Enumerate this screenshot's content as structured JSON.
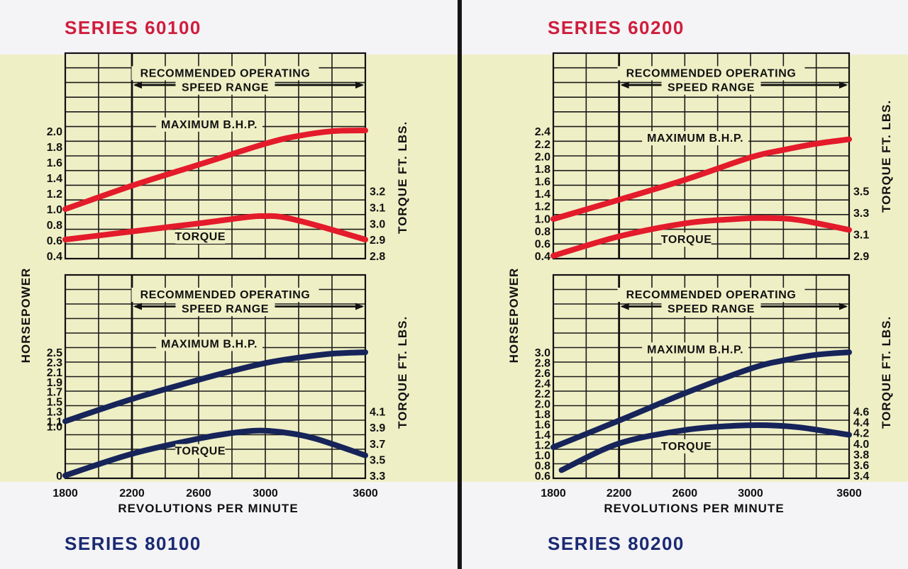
{
  "titles": {
    "top_left": "SERIES 60100",
    "bottom_left": "SERIES 80100",
    "top_right": "SERIES 60200",
    "bottom_right": "SERIES 80200"
  },
  "colors": {
    "series_60": "#e31b2b",
    "series_80": "#16245a",
    "band": "#efefc6",
    "grid": "#1a1a1a"
  },
  "chart_data": [
    {
      "type": "line",
      "series_title": "SERIES 60100",
      "xlabel": "REVOLUTIONS PER MINUTE",
      "ylabel": "HORSEPOWER",
      "y2label": "TORQUE FT. LBS.",
      "range_label_1": "RECOMMENDED OPERATING",
      "range_label_2": "SPEED RANGE",
      "recommended_range": [
        2200,
        3600
      ],
      "xlim": [
        1800,
        3600
      ],
      "x_ticks": [],
      "ylim": [
        0.4,
        2.0
      ],
      "y_ticks": [
        2.0,
        1.8,
        1.6,
        1.4,
        1.2,
        1.0,
        0.8,
        0.6,
        0.4
      ],
      "y2lim": [
        2.8,
        3.2
      ],
      "y2_ticks": [
        3.2,
        3.1,
        3.0,
        2.9,
        2.8
      ],
      "series": [
        {
          "name": "MAXIMUM B.H.P.",
          "axis": "left",
          "x": [
            1800,
            2200,
            2600,
            3000,
            3200,
            3400,
            3600
          ],
          "y": [
            1.0,
            1.3,
            1.57,
            1.84,
            1.94,
            2.0,
            2.01
          ]
        },
        {
          "name": "TORQUE",
          "axis": "right",
          "x": [
            1800,
            2200,
            2600,
            2900,
            3000,
            3100,
            3300,
            3600
          ],
          "y": [
            2.9,
            2.95,
            3.0,
            3.04,
            3.045,
            3.04,
            2.99,
            2.9
          ]
        }
      ]
    },
    {
      "type": "line",
      "series_title": "SERIES 80100",
      "xlabel": "REVOLUTIONS PER MINUTE",
      "ylabel": "HORSEPOWER",
      "y2label": "TORQUE FT. LBS.",
      "range_label_1": "RECOMMENDED OPERATING",
      "range_label_2": "SPEED RANGE",
      "recommended_range": [
        2200,
        3600
      ],
      "xlim": [
        1800,
        3600
      ],
      "x_ticks": [
        1800,
        2200,
        2600,
        3000,
        3600
      ],
      "ylim": [
        0.0,
        2.5
      ],
      "y_ticks": [
        2.5,
        2.3,
        2.1,
        1.9,
        1.7,
        1.5,
        1.3,
        1.1,
        1.0,
        0
      ],
      "y2lim": [
        3.3,
        4.1
      ],
      "y2_ticks": [
        4.1,
        3.9,
        3.7,
        3.5,
        3.3
      ],
      "series": [
        {
          "name": "MAXIMUM B.H.P.",
          "axis": "left",
          "x": [
            1800,
            2200,
            2600,
            2800,
            3000,
            3200,
            3400,
            3600
          ],
          "y": [
            1.1,
            1.55,
            1.94,
            2.12,
            2.28,
            2.39,
            2.47,
            2.5
          ]
        },
        {
          "name": "TORQUE",
          "axis": "right",
          "x": [
            1800,
            2200,
            2600,
            2800,
            2950,
            3100,
            3300,
            3600
          ],
          "y": [
            3.3,
            3.57,
            3.76,
            3.83,
            3.86,
            3.84,
            3.76,
            3.55
          ]
        }
      ]
    },
    {
      "type": "line",
      "series_title": "SERIES 60200",
      "xlabel": "REVOLUTIONS PER MINUTE",
      "ylabel": "HORSEPOWER",
      "y2label": "TORQUE FT. LBS.",
      "range_label_1": "RECOMMENDED OPERATING",
      "range_label_2": "SPEED RANGE",
      "recommended_range": [
        2200,
        3600
      ],
      "xlim": [
        1800,
        3600
      ],
      "x_ticks": [],
      "ylim": [
        0.4,
        2.4
      ],
      "y_ticks": [
        2.4,
        2.2,
        2.0,
        1.8,
        1.6,
        1.4,
        1.2,
        1.0,
        0.8,
        0.6,
        0.4
      ],
      "y2lim": [
        2.9,
        3.5
      ],
      "y2_ticks": [
        3.5,
        3.3,
        3.1,
        2.9
      ],
      "series": [
        {
          "name": "MAXIMUM B.H.P.",
          "axis": "left",
          "x": [
            1800,
            2200,
            2600,
            3000,
            3200,
            3400,
            3600
          ],
          "y": [
            0.99,
            1.3,
            1.62,
            1.98,
            2.1,
            2.2,
            2.27
          ]
        },
        {
          "name": "TORQUE",
          "axis": "right",
          "x": [
            1800,
            2200,
            2600,
            2900,
            3100,
            3300,
            3600
          ],
          "y": [
            2.9,
            3.08,
            3.2,
            3.24,
            3.25,
            3.23,
            3.14
          ]
        }
      ]
    },
    {
      "type": "line",
      "series_title": "SERIES 80200",
      "xlabel": "REVOLUTIONS PER MINUTE",
      "ylabel": "HORSEPOWER",
      "y2label": "TORQUE FT. LBS.",
      "range_label_1": "RECOMMENDED OPERATING",
      "range_label_2": "SPEED RANGE",
      "recommended_range": [
        2200,
        3600
      ],
      "xlim": [
        1800,
        3600
      ],
      "x_ticks": [
        1800,
        2200,
        2600,
        3000,
        3600
      ],
      "ylim": [
        0.6,
        3.0
      ],
      "y_ticks": [
        3.0,
        2.8,
        2.6,
        2.4,
        2.2,
        2.0,
        1.8,
        1.6,
        1.4,
        1.2,
        1.0,
        0.8,
        0.6
      ],
      "y2lim": [
        3.4,
        4.6
      ],
      "y2_ticks": [
        4.6,
        4.4,
        4.2,
        4.0,
        3.8,
        3.6,
        3.4
      ],
      "series": [
        {
          "name": "MAXIMUM B.H.P.",
          "axis": "left",
          "x": [
            1800,
            2200,
            2600,
            3000,
            3200,
            3400,
            3600
          ],
          "y": [
            1.15,
            1.67,
            2.2,
            2.68,
            2.84,
            2.95,
            3.0
          ]
        },
        {
          "name": "TORQUE",
          "axis": "right",
          "x": [
            1850,
            2200,
            2600,
            2900,
            3100,
            3300,
            3600
          ],
          "y": [
            3.5,
            4.0,
            4.25,
            4.33,
            4.34,
            4.3,
            4.16
          ]
        }
      ]
    }
  ]
}
